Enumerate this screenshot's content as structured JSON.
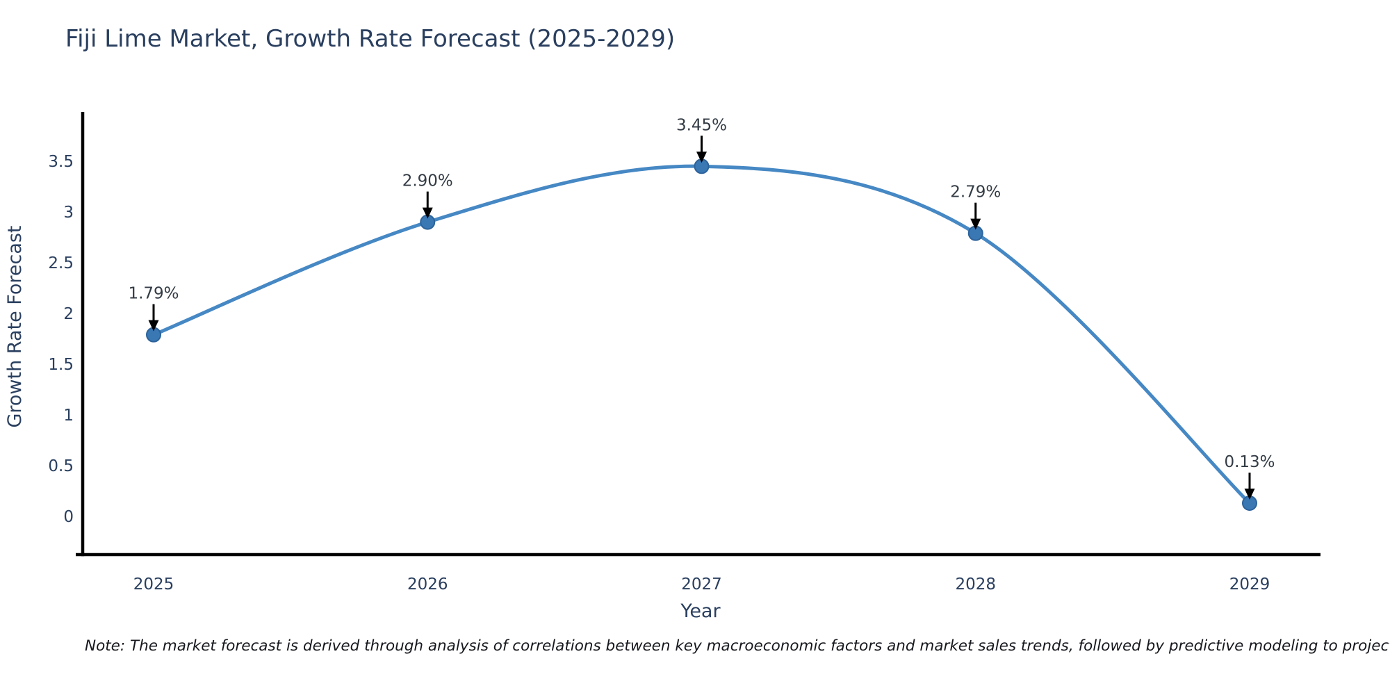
{
  "title": "Fiji Lime Market, Growth Rate Forecast (2025-2029)",
  "note": "Note: The market forecast is derived through analysis of correlations between key macroeconomic factors and market sales trends, followed by predictive modeling to project future sales",
  "chart_data": {
    "type": "line",
    "title": "Fiji Lime Market, Growth Rate Forecast (2025-2029)",
    "x": [
      2025,
      2026,
      2027,
      2028,
      2029
    ],
    "values": [
      1.79,
      2.9,
      3.45,
      2.79,
      0.13
    ],
    "point_labels": [
      "1.79%",
      "2.90%",
      "3.45%",
      "2.79%",
      "0.13%"
    ],
    "xlabel": "Year",
    "ylabel": "Growth Rate Forecast",
    "x_tick_labels": [
      "2025",
      "2026",
      "2027",
      "2028",
      "2029"
    ],
    "y_ticks": [
      0,
      0.5,
      1,
      1.5,
      2,
      2.5,
      3,
      3.5
    ],
    "ylim": [
      -0.38,
      3.99
    ],
    "line_shape": "spline",
    "grid": false,
    "legend": "none",
    "colors": {
      "line": "#4688c4",
      "marker_fill": "#3a78b4",
      "marker_edge": "#2d639b",
      "axis": "#000000",
      "tick_text": "#2a3f5f",
      "annotation_text": "#333b44",
      "annotation_arrow": "#000000",
      "title_text": "#2a3f5f"
    }
  }
}
